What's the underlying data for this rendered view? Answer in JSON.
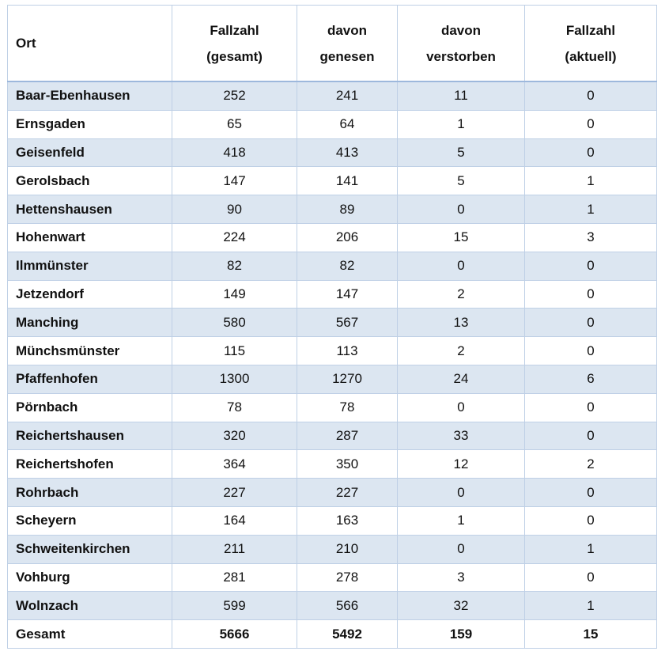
{
  "table": {
    "headers": [
      "Ort",
      "Fallzahl\n(gesamt)",
      "davon\ngenesen",
      "davon\nverstorben",
      "Fallzahl\n(aktuell)"
    ],
    "header_lines": [
      [
        "Ort"
      ],
      [
        "Fallzahl",
        "(gesamt)"
      ],
      [
        "davon",
        "genesen"
      ],
      [
        "davon",
        "verstorben"
      ],
      [
        "Fallzahl",
        "(aktuell)"
      ]
    ],
    "rows": [
      [
        "Baar-Ebenhausen",
        "252",
        "241",
        "11",
        "0"
      ],
      [
        "Ernsgaden",
        "65",
        "64",
        "1",
        "0"
      ],
      [
        "Geisenfeld",
        "418",
        "413",
        "5",
        "0"
      ],
      [
        "Gerolsbach",
        "147",
        "141",
        "5",
        "1"
      ],
      [
        "Hettenshausen",
        "90",
        "89",
        "0",
        "1"
      ],
      [
        "Hohenwart",
        "224",
        "206",
        "15",
        "3"
      ],
      [
        "Ilmmünster",
        "82",
        "82",
        "0",
        "0"
      ],
      [
        "Jetzendorf",
        "149",
        "147",
        "2",
        "0"
      ],
      [
        "Manching",
        "580",
        "567",
        "13",
        "0"
      ],
      [
        "Münchsmünster",
        "115",
        "113",
        "2",
        "0"
      ],
      [
        "Pfaffenhofen",
        "1300",
        "1270",
        "24",
        "6"
      ],
      [
        "Pörnbach",
        "78",
        "78",
        "0",
        "0"
      ],
      [
        "Reichertshausen",
        "320",
        "287",
        "33",
        "0"
      ],
      [
        "Reichertshofen",
        "364",
        "350",
        "12",
        "2"
      ],
      [
        "Rohrbach",
        "227",
        "227",
        "0",
        "0"
      ],
      [
        "Scheyern",
        "164",
        "163",
        "1",
        "0"
      ],
      [
        "Schweitenkirchen",
        "211",
        "210",
        "0",
        "1"
      ],
      [
        "Vohburg",
        "281",
        "278",
        "3",
        "0"
      ],
      [
        "Wolnzach",
        "599",
        "566",
        "32",
        "1"
      ]
    ],
    "total": [
      "Gesamt",
      "5666",
      "5492",
      "159",
      "15"
    ]
  },
  "colors": {
    "stripe": "#dce6f1",
    "border": "#bfd0e6"
  }
}
